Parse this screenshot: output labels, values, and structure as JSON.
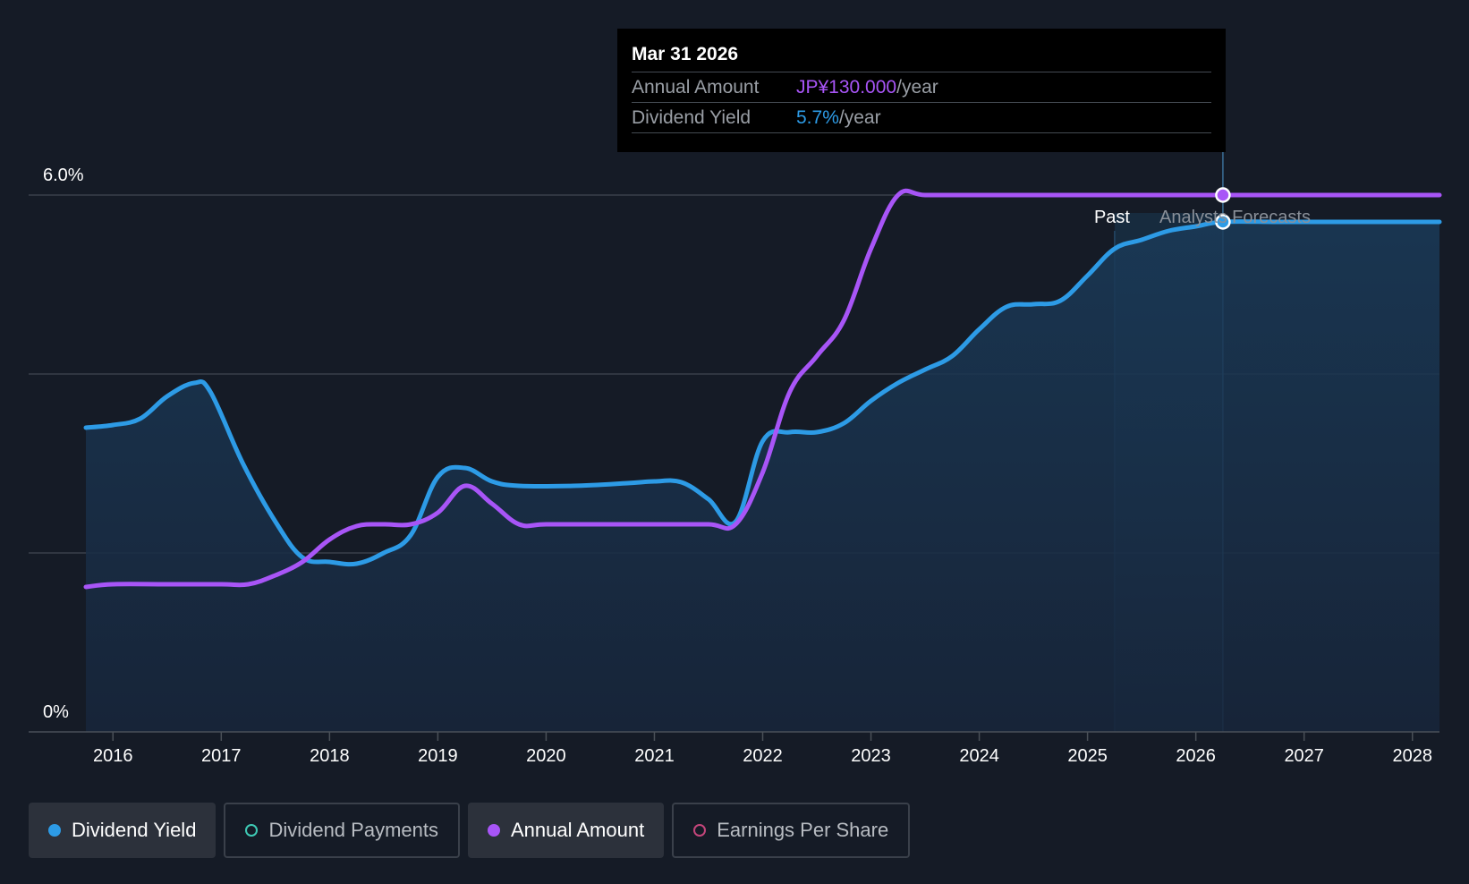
{
  "tooltip": {
    "date": "Mar 31 2026",
    "rows": [
      {
        "label": "Annual Amount",
        "value": "JP¥130.000",
        "unit": "/year"
      },
      {
        "label": "Dividend Yield",
        "value": "5.7%",
        "unit": "/year"
      }
    ]
  },
  "chart_data": {
    "type": "area",
    "y_axis": {
      "min": 0,
      "max": 6.0,
      "unit": "%",
      "labels": [
        "6.0%",
        "0%"
      ],
      "gridlines": [
        2.0,
        4.0,
        6.0
      ]
    },
    "x_axis": {
      "min": 2015.75,
      "max": 2028.25,
      "ticks": [
        "2016",
        "2017",
        "2018",
        "2019",
        "2020",
        "2021",
        "2022",
        "2023",
        "2024",
        "2025",
        "2026",
        "2027",
        "2028"
      ]
    },
    "past_label": "Past",
    "forecast_label": "Analysts Forecasts",
    "forecast_start": 2025.25,
    "hover_x": 2026.25,
    "series": [
      {
        "name": "Dividend Yield",
        "color": "#2d9be6",
        "x": [
          2015.75,
          2016.0,
          2016.25,
          2016.5,
          2016.75,
          2016.9,
          2017.2,
          2017.5,
          2017.75,
          2018.0,
          2018.25,
          2018.5,
          2018.75,
          2019.0,
          2019.25,
          2019.5,
          2019.75,
          2020.25,
          2020.75,
          2021.0,
          2021.25,
          2021.5,
          2021.75,
          2022.0,
          2022.25,
          2022.5,
          2022.75,
          2023.0,
          2023.25,
          2023.5,
          2023.75,
          2024.0,
          2024.25,
          2024.5,
          2024.75,
          2025.0,
          2025.25,
          2025.5,
          2025.75,
          2026.0,
          2026.25,
          2026.75,
          2027.25,
          2027.75,
          2028.25
        ],
        "values": [
          3.4,
          3.43,
          3.5,
          3.75,
          3.9,
          3.8,
          3.0,
          2.35,
          1.95,
          1.9,
          1.88,
          2.0,
          2.2,
          2.85,
          2.95,
          2.8,
          2.75,
          2.75,
          2.78,
          2.8,
          2.79,
          2.6,
          2.35,
          3.25,
          3.35,
          3.35,
          3.45,
          3.7,
          3.9,
          4.05,
          4.2,
          4.5,
          4.75,
          4.78,
          4.82,
          5.1,
          5.4,
          5.5,
          5.6,
          5.65,
          5.7,
          5.7,
          5.7,
          5.7,
          5.7
        ]
      },
      {
        "name": "Annual Amount",
        "color": "#a855f7",
        "x": [
          2015.75,
          2016.0,
          2016.5,
          2017.0,
          2017.25,
          2017.5,
          2017.75,
          2018.0,
          2018.25,
          2018.5,
          2018.75,
          2019.0,
          2019.25,
          2019.5,
          2019.75,
          2020.0,
          2020.5,
          2021.0,
          2021.5,
          2021.75,
          2022.0,
          2022.25,
          2022.5,
          2022.75,
          2023.0,
          2023.25,
          2023.5,
          2024.0,
          2025.0,
          2026.0,
          2026.25,
          2027.0,
          2028.25
        ],
        "values": [
          1.62,
          1.65,
          1.65,
          1.65,
          1.65,
          1.75,
          1.9,
          2.15,
          2.3,
          2.32,
          2.32,
          2.45,
          2.75,
          2.55,
          2.32,
          2.32,
          2.32,
          2.32,
          2.32,
          2.32,
          2.9,
          3.8,
          4.2,
          4.6,
          5.4,
          6.0,
          6.0,
          6.0,
          6.0,
          6.0,
          6.0,
          6.0,
          6.0
        ]
      }
    ]
  },
  "legend": [
    {
      "label": "Dividend Yield",
      "color": "#2d9be6",
      "active": true,
      "filled": true
    },
    {
      "label": "Dividend Payments",
      "color": "#3ec9b4",
      "active": false,
      "filled": false
    },
    {
      "label": "Annual Amount",
      "color": "#a855f7",
      "active": true,
      "filled": true
    },
    {
      "label": "Earnings Per Share",
      "color": "#c2457a",
      "active": false,
      "filled": false
    }
  ]
}
